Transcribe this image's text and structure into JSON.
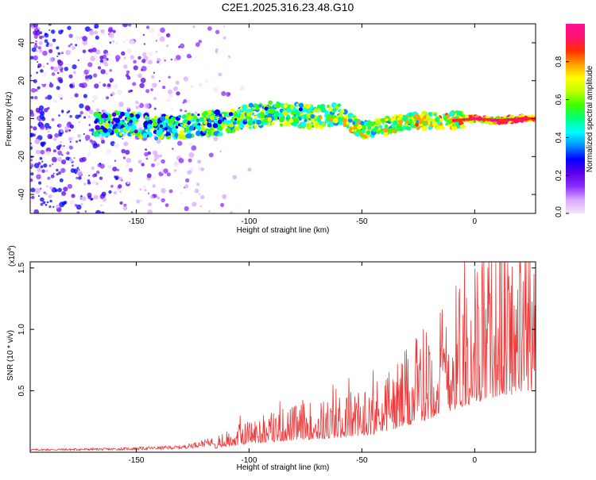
{
  "figure": {
    "title": "C2E1.2025.316.23.48.G10"
  },
  "chart_data": [
    {
      "type": "heatmap",
      "xlabel": "Height of straight line (km)",
      "ylabel": "Frequency (Hz)",
      "xlim": [
        -197,
        27
      ],
      "ylim": [
        -50,
        50
      ],
      "xticks": [
        -150,
        -100,
        -50,
        0
      ],
      "yticks": [
        -40,
        -20,
        0,
        20,
        40
      ],
      "colorbar": {
        "label": "Normalized spectral amplitude",
        "range": [
          0,
          1
        ],
        "ticks": [
          "0.0",
          "0.2",
          "0.4",
          "0.6",
          "0.8"
        ],
        "colors": [
          "#f4e6fb",
          "#d9a8ff",
          "#8a2cff",
          "#5a00e6",
          "#0000ff",
          "#0090ff",
          "#00ffff",
          "#00ff80",
          "#40ff00",
          "#c0ff00",
          "#ffff00",
          "#ffa000",
          "#ff3000",
          "#ff1070",
          "#ff1090"
        ]
      },
      "ridge": {
        "x": [
          -160,
          -150,
          -140,
          -130,
          -120,
          -110,
          -100,
          -90,
          -80,
          -70,
          -60,
          -50,
          -40,
          -30,
          -20,
          -10,
          0,
          10,
          20,
          27
        ],
        "y": [
          -3,
          -3,
          -5,
          -4,
          -3,
          -2,
          1,
          3,
          2,
          1,
          2,
          -6,
          -4,
          -2,
          -1,
          -1,
          0,
          -1,
          0,
          0
        ]
      }
    },
    {
      "type": "line",
      "xlabel": "Height of straight line (km)",
      "ylabel": "SNR (10 * v/v)",
      "multiplier_label": "(x10",
      "multiplier_exp": "4",
      "xlim": [
        -197,
        27
      ],
      "ylim": [
        0,
        1.55
      ],
      "xticks": [
        -150,
        -100,
        -50,
        0
      ],
      "yticks": [
        "0.5",
        "1.0",
        "1.5"
      ],
      "color": "#ee3a3a",
      "envelope": {
        "x": [
          -197,
          -160,
          -130,
          -115,
          -100,
          -80,
          -60,
          -45,
          -30,
          -20,
          -10,
          0,
          10,
          20,
          27
        ],
        "y": [
          0.02,
          0.025,
          0.04,
          0.09,
          0.2,
          0.28,
          0.33,
          0.42,
          0.6,
          0.78,
          0.98,
          1.15,
          1.3,
          1.36,
          1.42
        ]
      }
    }
  ]
}
